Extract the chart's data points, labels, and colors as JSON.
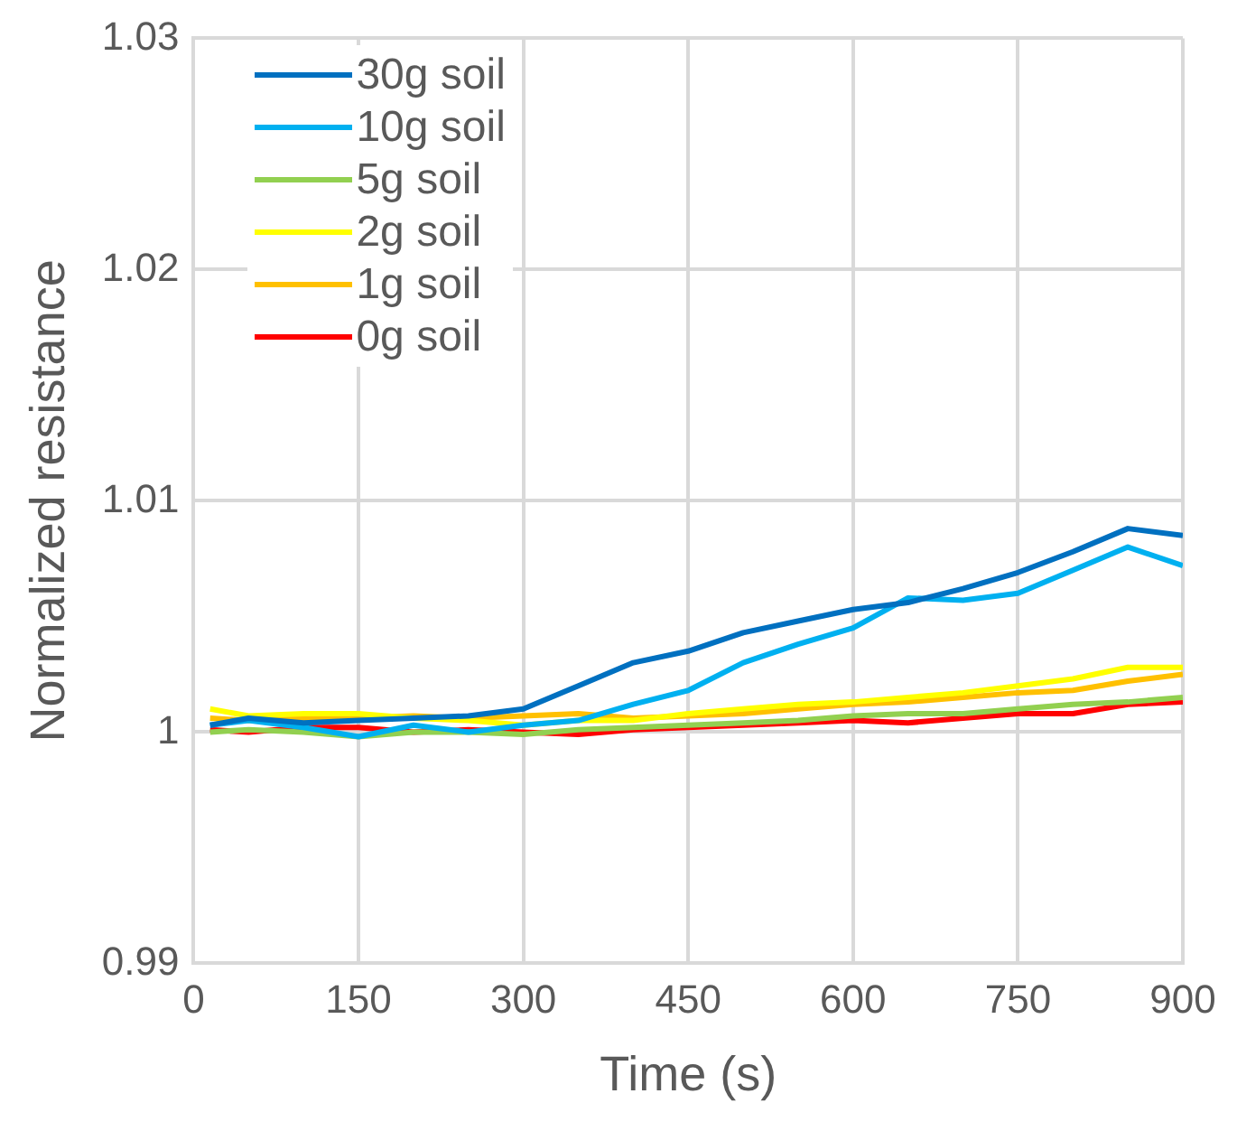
{
  "chart_data": {
    "type": "line",
    "xlabel": "Time (s)",
    "ylabel": "Normalized resistance",
    "x": [
      15,
      50,
      100,
      150,
      200,
      250,
      300,
      350,
      400,
      450,
      500,
      550,
      600,
      650,
      700,
      750,
      800,
      850,
      900
    ],
    "xlim": [
      0,
      900
    ],
    "xticks": [
      0,
      150,
      300,
      450,
      600,
      750,
      900
    ],
    "ylim": [
      0.99,
      1.03
    ],
    "yticks": [
      0.99,
      1,
      1.01,
      1.02,
      1.03
    ],
    "grid": true,
    "legend": "top left",
    "marker": "none",
    "line_style": "solid",
    "series": [
      {
        "name": "30g soil",
        "color": "#0070c0",
        "values": [
          1.0003,
          1.0006,
          1.0004,
          1.0005,
          1.0006,
          1.0007,
          1.001,
          1.002,
          1.003,
          1.0035,
          1.0043,
          1.0048,
          1.0053,
          1.0056,
          1.0062,
          1.0069,
          1.0078,
          1.0088,
          1.0085
        ]
      },
      {
        "name": "10g soil",
        "color": "#00b0f0",
        "values": [
          1.0003,
          1.0005,
          1.0002,
          0.9998,
          1.0003,
          1.0,
          1.0003,
          1.0005,
          1.0012,
          1.0018,
          1.003,
          1.0038,
          1.0045,
          1.0058,
          1.0057,
          1.006,
          1.007,
          1.008,
          1.0072
        ]
      },
      {
        "name": "5g soil",
        "color": "#92d050",
        "values": [
          1.0,
          1.0001,
          1.0,
          0.9998,
          1.0,
          1.0,
          0.9999,
          1.0001,
          1.0002,
          1.0003,
          1.0004,
          1.0005,
          1.0007,
          1.0008,
          1.0008,
          1.001,
          1.0012,
          1.0013,
          1.0015
        ]
      },
      {
        "name": "2g soil",
        "color": "#ffff00",
        "values": [
          1.001,
          1.0007,
          1.0008,
          1.0008,
          1.0006,
          1.0005,
          1.0003,
          1.0005,
          1.0005,
          1.0008,
          1.001,
          1.0012,
          1.0013,
          1.0015,
          1.0017,
          1.002,
          1.0023,
          1.0028,
          1.0028
        ]
      },
      {
        "name": "1g soil",
        "color": "#ffc000",
        "values": [
          1.0006,
          1.0005,
          1.0006,
          1.0006,
          1.0007,
          1.0006,
          1.0007,
          1.0008,
          1.0006,
          1.0007,
          1.0008,
          1.001,
          1.0012,
          1.0013,
          1.0015,
          1.0017,
          1.0018,
          1.0022,
          1.0025
        ]
      },
      {
        "name": "0g soil",
        "color": "#ff0000",
        "values": [
          1.0001,
          1.0,
          1.0002,
          1.0002,
          1.0,
          1.0001,
          1.0,
          0.9999,
          1.0001,
          1.0002,
          1.0003,
          1.0004,
          1.0005,
          1.0004,
          1.0006,
          1.0008,
          1.0008,
          1.0012,
          1.0013
        ]
      }
    ]
  }
}
